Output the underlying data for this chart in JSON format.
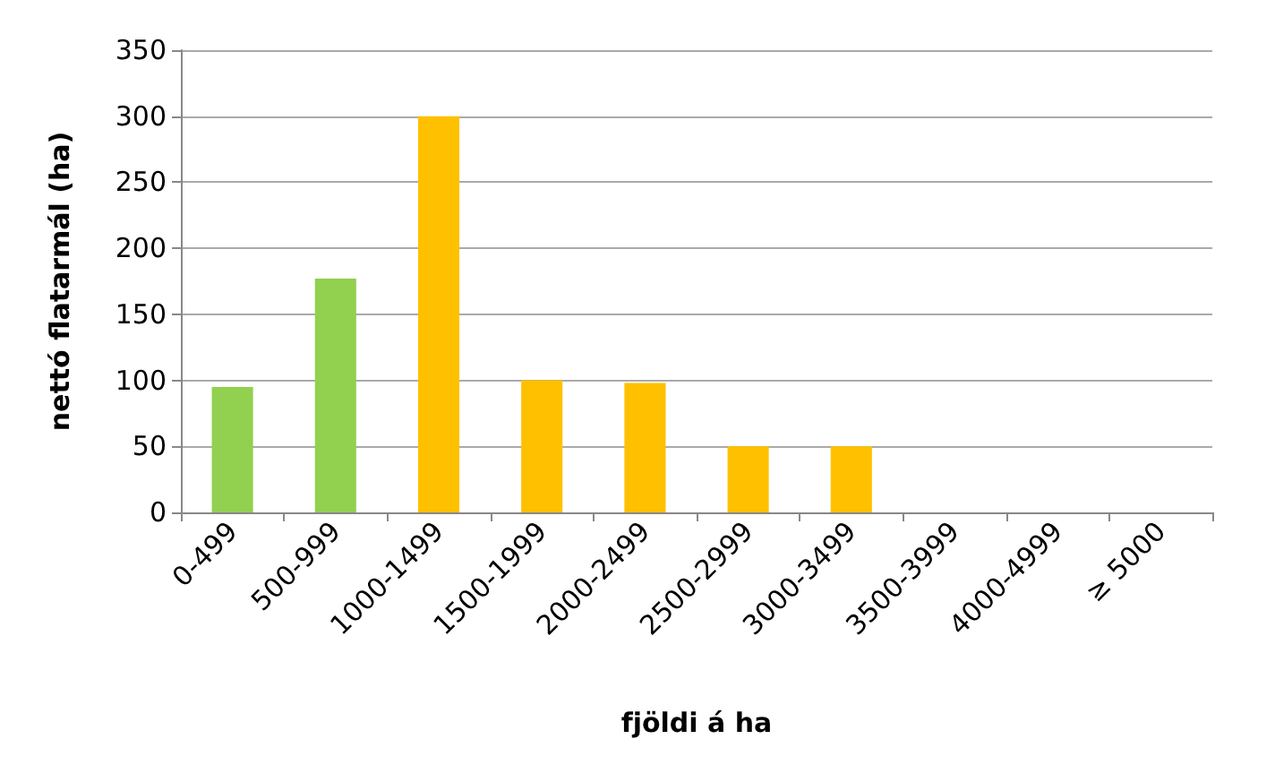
{
  "chart_data": {
    "type": "bar",
    "xlabel": "fjöldi á ha",
    "ylabel": "nettó flatarmál (ha)",
    "categories": [
      "0-499",
      "500-999",
      "1000-1499",
      "1500-1999",
      "2000-2499",
      "2500-2999",
      "3000-3499",
      "3500-3999",
      "4000-4999",
      "≥ 5000"
    ],
    "values": [
      95,
      177,
      300,
      100,
      98,
      50,
      50,
      0,
      0,
      0
    ],
    "colors": [
      "#92d050",
      "#92d050",
      "#ffc000",
      "#ffc000",
      "#ffc000",
      "#ffc000",
      "#ffc000",
      "#ffc000",
      "#ffc000",
      "#ffc000"
    ],
    "ylim": [
      0,
      350
    ],
    "yticks": [
      0,
      50,
      100,
      150,
      200,
      250,
      300,
      350
    ],
    "grid": "y"
  }
}
